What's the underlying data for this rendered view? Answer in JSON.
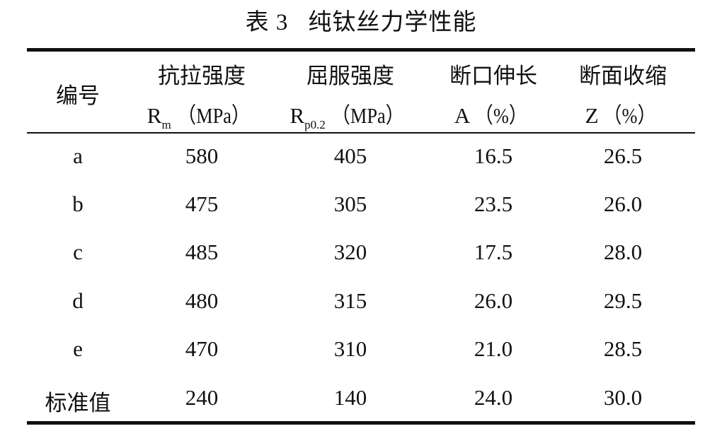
{
  "title": {
    "label": "表 3",
    "text": "纯钛丝力学性能"
  },
  "headers": [
    {
      "line1": "编号"
    },
    {
      "line1": "抗拉强度",
      "symbol": "R",
      "sub": "m",
      "unit": "（MPa）"
    },
    {
      "line1": "屈服强度",
      "symbol": "R",
      "sub": "p0.2",
      "unit": "（MPa）"
    },
    {
      "line1": "断口伸长",
      "symbol": "A",
      "sub": "",
      "unit": "（%）"
    },
    {
      "line1": "断面收缩",
      "symbol": "Z",
      "sub": "",
      "unit": "（%）"
    }
  ],
  "rows": [
    [
      "a",
      "580",
      "405",
      "16.5",
      "26.5"
    ],
    [
      "b",
      "475",
      "305",
      "23.5",
      "26.0"
    ],
    [
      "c",
      "485",
      "320",
      "17.5",
      "28.0"
    ],
    [
      "d",
      "480",
      "315",
      "26.0",
      "29.5"
    ],
    [
      "e",
      "470",
      "310",
      "21.0",
      "28.5"
    ],
    [
      "标准值",
      "240",
      "140",
      "24.0",
      "30.0"
    ]
  ]
}
